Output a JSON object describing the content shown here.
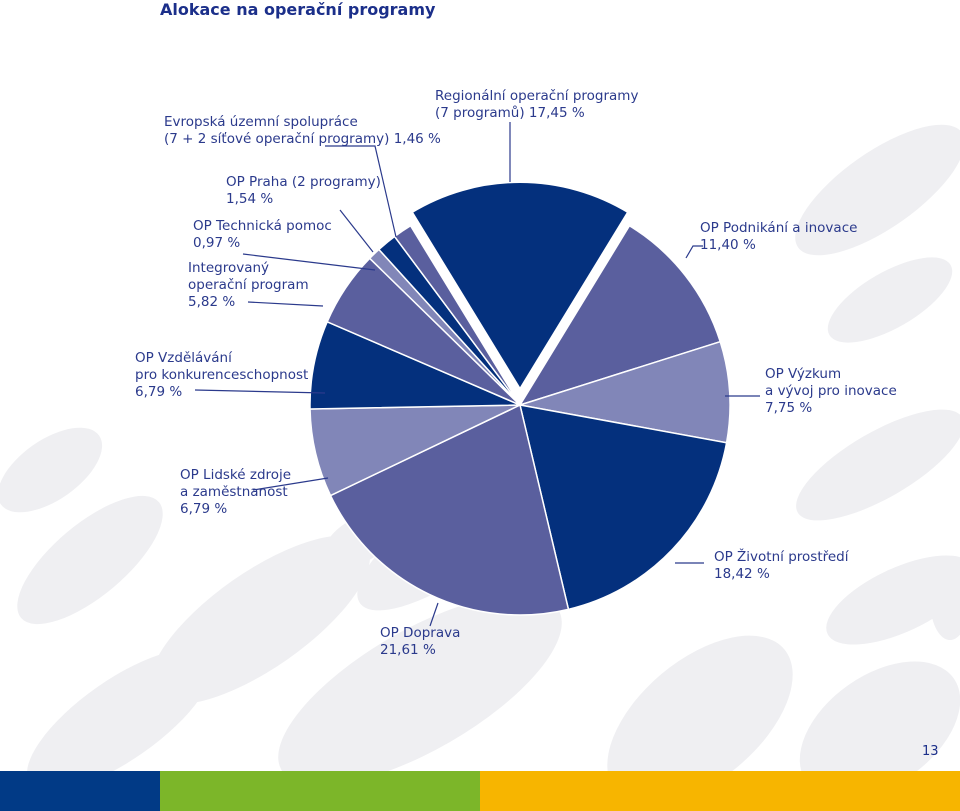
{
  "page": {
    "title": "Alokace na operační programy",
    "page_number": "13"
  },
  "colors": {
    "dark": "#04307d",
    "mid": "#5a5f9e",
    "light": "#8186b8",
    "label": "#2b3a8c",
    "band_blue": "#013a86",
    "band_green": "#7cb629",
    "band_orange": "#f7b500",
    "bg_ellipse": "#efeff2"
  },
  "chart_data": {
    "type": "pie",
    "unit": "%",
    "slices": [
      {
        "label": "Regionální operační programy (7 programů)",
        "value": 17.45,
        "color": "#04307d",
        "exploded": true
      },
      {
        "label": "OP Podnikání a inovace",
        "value": 11.4,
        "color": "#5a5f9e"
      },
      {
        "label": "OP Výzkum a vývoj pro inovace",
        "value": 7.75,
        "color": "#8186b8"
      },
      {
        "label": "OP Životní prostředí",
        "value": 18.42,
        "color": "#04307d"
      },
      {
        "label": "OP Doprava",
        "value": 21.61,
        "color": "#5a5f9e"
      },
      {
        "label": "OP Lidské zdroje a zaměstnanost",
        "value": 6.79,
        "color": "#8186b8"
      },
      {
        "label": "OP Vzdělávání pro konkurenceschopnost",
        "value": 6.79,
        "color": "#04307d"
      },
      {
        "label": "Integrovaný operační program",
        "value": 5.82,
        "color": "#5a5f9e"
      },
      {
        "label": "OP Technická pomoc",
        "value": 0.97,
        "color": "#8186b8"
      },
      {
        "label": "OP Praha (2 programy)",
        "value": 1.54,
        "color": "#04307d"
      },
      {
        "label": "Evropská územní spolupráce (7 + 2 síťové operační programy)",
        "value": 1.46,
        "color": "#5a5f9e"
      }
    ]
  },
  "labels": {
    "rop": [
      "Regionální operační programy",
      "(7 programů) 17,45 %"
    ],
    "eus": [
      "Evropská územní spolupráce",
      "(7 + 2 síťové operační programy) 1,46 %"
    ],
    "praha": [
      "OP Praha (2 programy)",
      "1,54 %"
    ],
    "tp": [
      "OP Technická pomoc",
      "0,97 %"
    ],
    "iop": [
      "Integrovaný",
      "operační program",
      "5,82 %"
    ],
    "pi": [
      "OP Podnikání a inovace",
      "11,40 %"
    ],
    "vk": [
      "OP Vzdělávání",
      "pro konkurenceschopnost",
      "6,79 %"
    ],
    "vvi": [
      "OP Výzkum",
      "a vývoj pro inovace",
      "7,75 %"
    ],
    "lzz": [
      "OP Lidské zdroje",
      "a zaměstnanost",
      "6,79 %"
    ],
    "zp": [
      "OP Životní prostředí",
      "18,42 %"
    ],
    "doprava": [
      "OP Doprava",
      "21,61 %"
    ]
  }
}
